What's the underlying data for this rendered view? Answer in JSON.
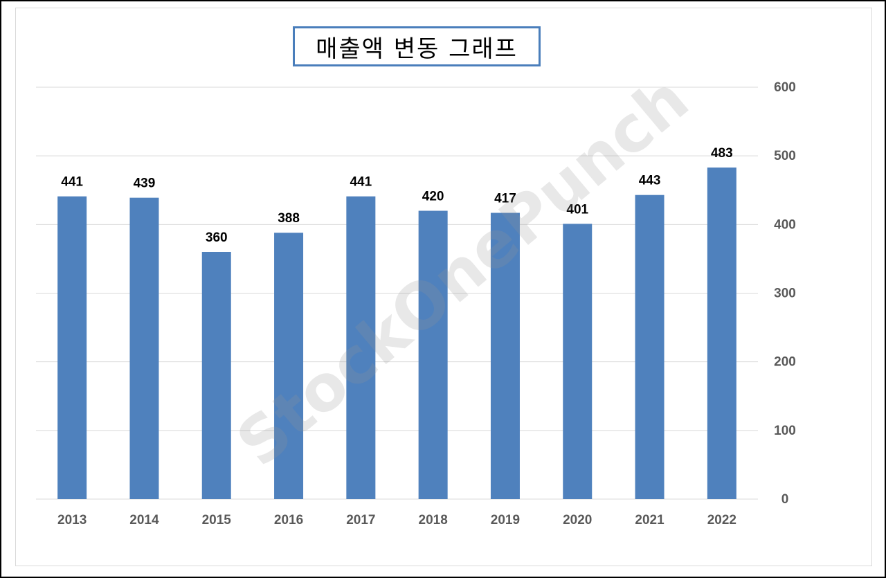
{
  "title": "매출액 변동 그래프",
  "watermark": "StockOnePunch",
  "colors": {
    "bar": "#4f81bd",
    "title_border": "#4a7ebb",
    "grid": "#d9d9d9",
    "tick_label": "#595959",
    "data_label": "#000000"
  },
  "chart_data": {
    "type": "bar",
    "title": "매출액 변동 그래프",
    "categories": [
      "2013",
      "2014",
      "2015",
      "2016",
      "2017",
      "2018",
      "2019",
      "2020",
      "2021",
      "2022"
    ],
    "values": [
      441,
      439,
      360,
      388,
      441,
      420,
      417,
      401,
      443,
      483
    ],
    "xlabel": "",
    "ylabel": "",
    "ylim": [
      0,
      600
    ],
    "yticks": [
      0,
      100,
      200,
      300,
      400,
      500,
      600
    ],
    "y_axis_position": "right",
    "grid": true,
    "legend": "none",
    "data_labels": true
  }
}
